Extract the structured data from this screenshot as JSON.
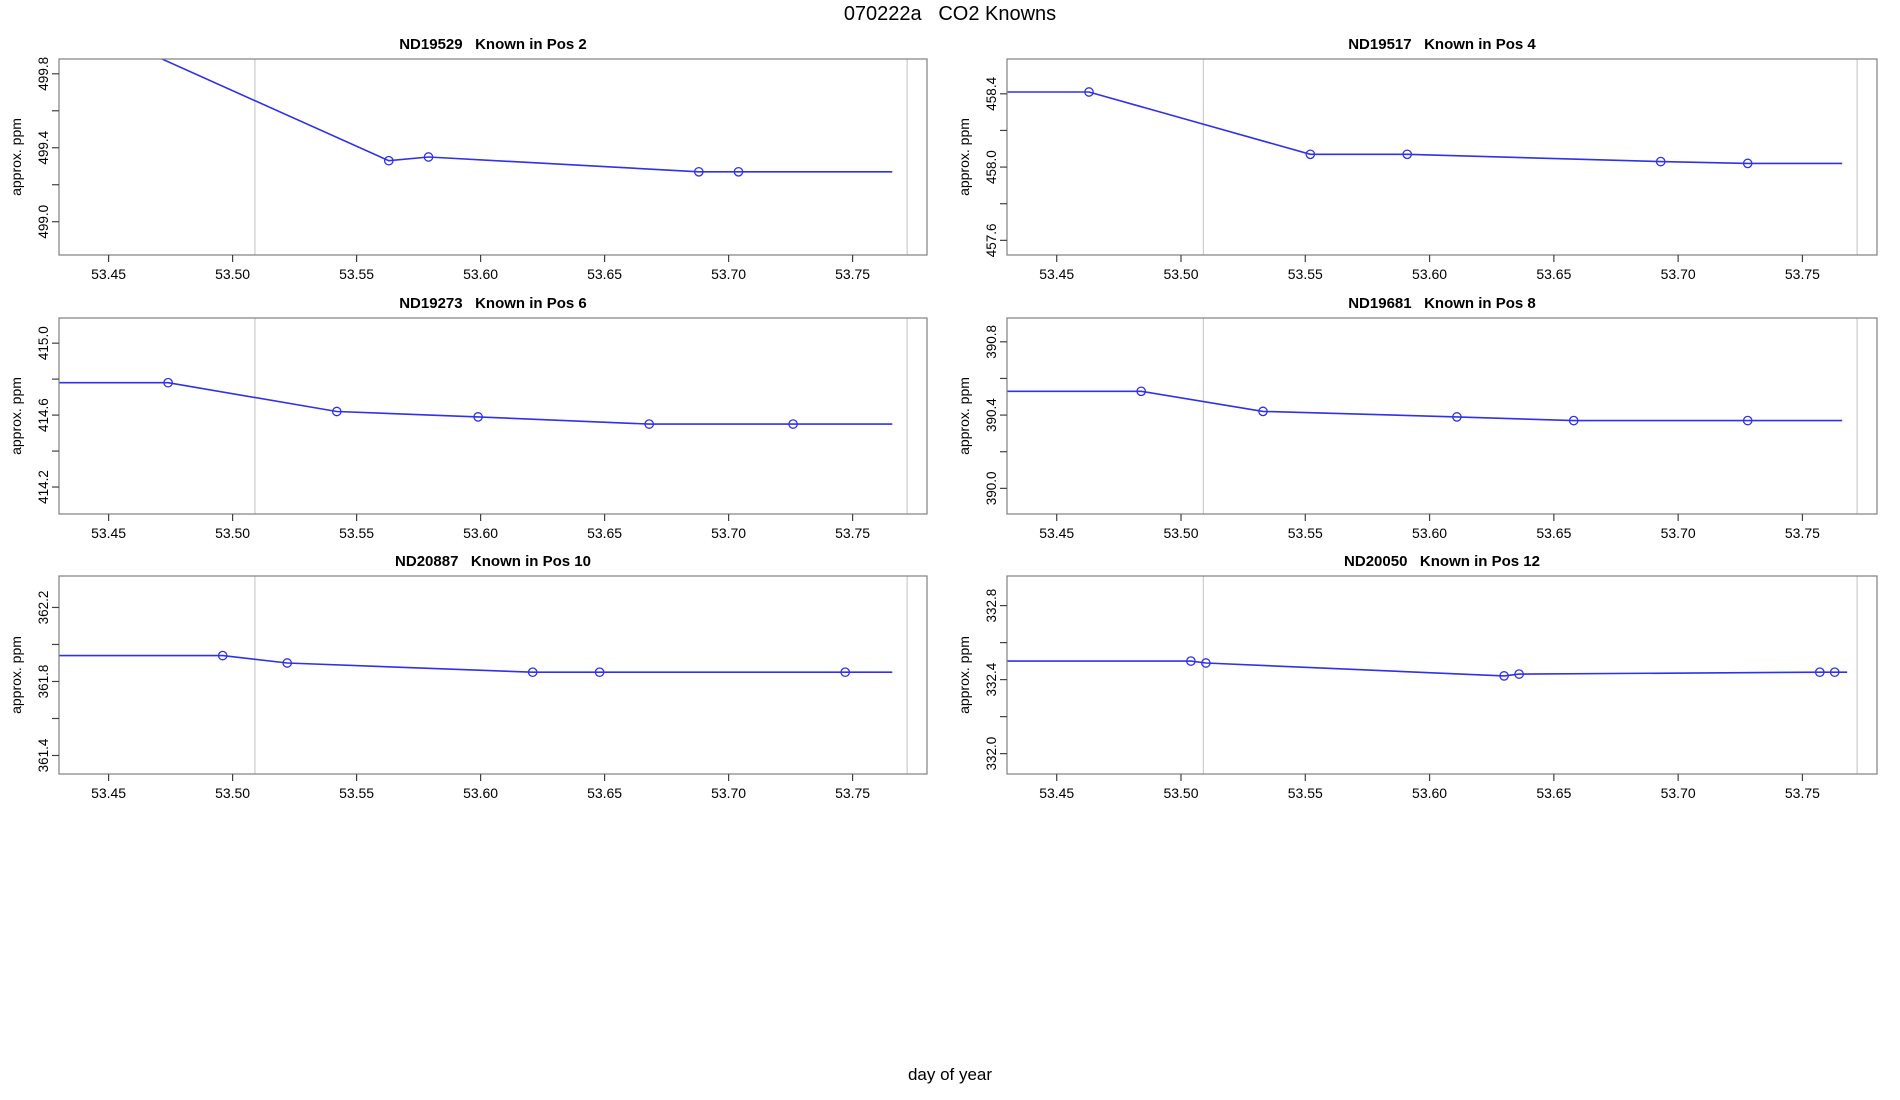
{
  "figure": {
    "title": "070222a   CO2 Knowns",
    "xlabel": "day of year"
  },
  "colors": {
    "line": "#3030EE",
    "marker": "#3030EE",
    "vline": "#CCCCCC",
    "frame": "#808080",
    "tick": "#404040",
    "text": "#000000",
    "background": "#FFFFFF"
  },
  "x_axis": {
    "label": "day of year",
    "range": [
      53.43,
      53.78
    ],
    "tick_values": [
      53.45,
      53.5,
      53.55,
      53.6,
      53.65,
      53.7,
      53.75
    ],
    "tick_labels": [
      "53.45",
      "53.50",
      "53.55",
      "53.60",
      "53.65",
      "53.70",
      "53.75"
    ],
    "vlines": [
      53.509,
      53.772
    ]
  },
  "chart_data": [
    {
      "type": "line",
      "id": "ND19529",
      "title": "ND19529   Known in Pos 2",
      "ylabel": "approx. ppm",
      "y_range": [
        498.82,
        499.88
      ],
      "y_tick_values": [
        499.0,
        499.2,
        499.4,
        499.6,
        499.8
      ],
      "y_tick_labels": [
        "499.0",
        "",
        "499.4",
        "",
        "499.8"
      ],
      "line": [
        [
          53.43,
          500.13
        ],
        [
          53.563,
          499.33
        ],
        [
          53.579,
          499.35
        ],
        [
          53.688,
          499.27
        ],
        [
          53.704,
          499.27
        ],
        [
          53.766,
          499.27
        ]
      ],
      "points": [
        [
          53.563,
          499.33
        ],
        [
          53.579,
          499.35
        ],
        [
          53.688,
          499.27
        ],
        [
          53.704,
          499.27
        ]
      ]
    },
    {
      "type": "line",
      "id": "ND19517",
      "title": "ND19517   Known in Pos 4",
      "ylabel": "approx. ppm",
      "y_range": [
        457.52,
        458.59
      ],
      "y_tick_values": [
        457.6,
        457.8,
        458.0,
        458.2,
        458.4
      ],
      "y_tick_labels": [
        "457.6",
        "",
        "458.0",
        "",
        "458.4"
      ],
      "line": [
        [
          53.43,
          458.41
        ],
        [
          53.463,
          458.41
        ],
        [
          53.552,
          458.07
        ],
        [
          53.591,
          458.07
        ],
        [
          53.693,
          458.03
        ],
        [
          53.728,
          458.02
        ],
        [
          53.766,
          458.02
        ]
      ],
      "points": [
        [
          53.463,
          458.41
        ],
        [
          53.552,
          458.07
        ],
        [
          53.591,
          458.07
        ],
        [
          53.693,
          458.03
        ],
        [
          53.728,
          458.02
        ]
      ]
    },
    {
      "type": "line",
      "id": "ND19273",
      "title": "ND19273   Known in Pos 6",
      "ylabel": "approx. ppm",
      "y_range": [
        414.05,
        415.14
      ],
      "y_tick_values": [
        414.2,
        414.4,
        414.6,
        414.8,
        415.0
      ],
      "y_tick_labels": [
        "414.2",
        "",
        "414.6",
        "",
        "415.0"
      ],
      "line": [
        [
          53.43,
          414.78
        ],
        [
          53.474,
          414.78
        ],
        [
          53.542,
          414.62
        ],
        [
          53.599,
          414.59
        ],
        [
          53.668,
          414.55
        ],
        [
          53.726,
          414.55
        ],
        [
          53.766,
          414.55
        ]
      ],
      "points": [
        [
          53.474,
          414.78
        ],
        [
          53.542,
          414.62
        ],
        [
          53.599,
          414.59
        ],
        [
          53.668,
          414.55
        ],
        [
          53.726,
          414.55
        ]
      ]
    },
    {
      "type": "line",
      "id": "ND19681",
      "title": "ND19681   Known in Pos 8",
      "ylabel": "approx. ppm",
      "y_range": [
        389.86,
        390.93
      ],
      "y_tick_values": [
        390.0,
        390.2,
        390.4,
        390.6,
        390.8
      ],
      "y_tick_labels": [
        "390.0",
        "",
        "390.4",
        "",
        "390.8"
      ],
      "line": [
        [
          53.43,
          390.53
        ],
        [
          53.484,
          390.53
        ],
        [
          53.533,
          390.42
        ],
        [
          53.611,
          390.39
        ],
        [
          53.658,
          390.37
        ],
        [
          53.728,
          390.37
        ],
        [
          53.766,
          390.37
        ]
      ],
      "points": [
        [
          53.484,
          390.53
        ],
        [
          53.533,
          390.42
        ],
        [
          53.611,
          390.39
        ],
        [
          53.658,
          390.37
        ],
        [
          53.728,
          390.37
        ]
      ]
    },
    {
      "type": "line",
      "id": "ND20887",
      "title": "ND20887   Known in Pos 10",
      "ylabel": "approx. ppm",
      "y_range": [
        361.3,
        362.37
      ],
      "y_tick_values": [
        361.4,
        361.6,
        361.8,
        362.0,
        362.2
      ],
      "y_tick_labels": [
        "361.4",
        "",
        "361.8",
        "",
        "362.2"
      ],
      "line": [
        [
          53.43,
          361.94
        ],
        [
          53.496,
          361.94
        ],
        [
          53.522,
          361.9
        ],
        [
          53.621,
          361.85
        ],
        [
          53.648,
          361.85
        ],
        [
          53.747,
          361.85
        ],
        [
          53.766,
          361.85
        ]
      ],
      "points": [
        [
          53.496,
          361.94
        ],
        [
          53.522,
          361.9
        ],
        [
          53.621,
          361.85
        ],
        [
          53.648,
          361.85
        ],
        [
          53.747,
          361.85
        ]
      ]
    },
    {
      "type": "line",
      "id": "ND20050",
      "title": "ND20050   Known in Pos 12",
      "ylabel": "approx. ppm",
      "y_range": [
        331.89,
        332.96
      ],
      "y_tick_values": [
        332.0,
        332.2,
        332.4,
        332.6,
        332.8
      ],
      "y_tick_labels": [
        "332.0",
        "",
        "332.4",
        "",
        "332.8"
      ],
      "line": [
        [
          53.43,
          332.5
        ],
        [
          53.504,
          332.5
        ],
        [
          53.51,
          332.49
        ],
        [
          53.63,
          332.42
        ],
        [
          53.636,
          332.43
        ],
        [
          53.757,
          332.44
        ],
        [
          53.763,
          332.44
        ],
        [
          53.768,
          332.44
        ]
      ],
      "points": [
        [
          53.504,
          332.5
        ],
        [
          53.51,
          332.49
        ],
        [
          53.63,
          332.42
        ],
        [
          53.636,
          332.43
        ],
        [
          53.757,
          332.44
        ],
        [
          53.763,
          332.44
        ]
      ]
    }
  ]
}
